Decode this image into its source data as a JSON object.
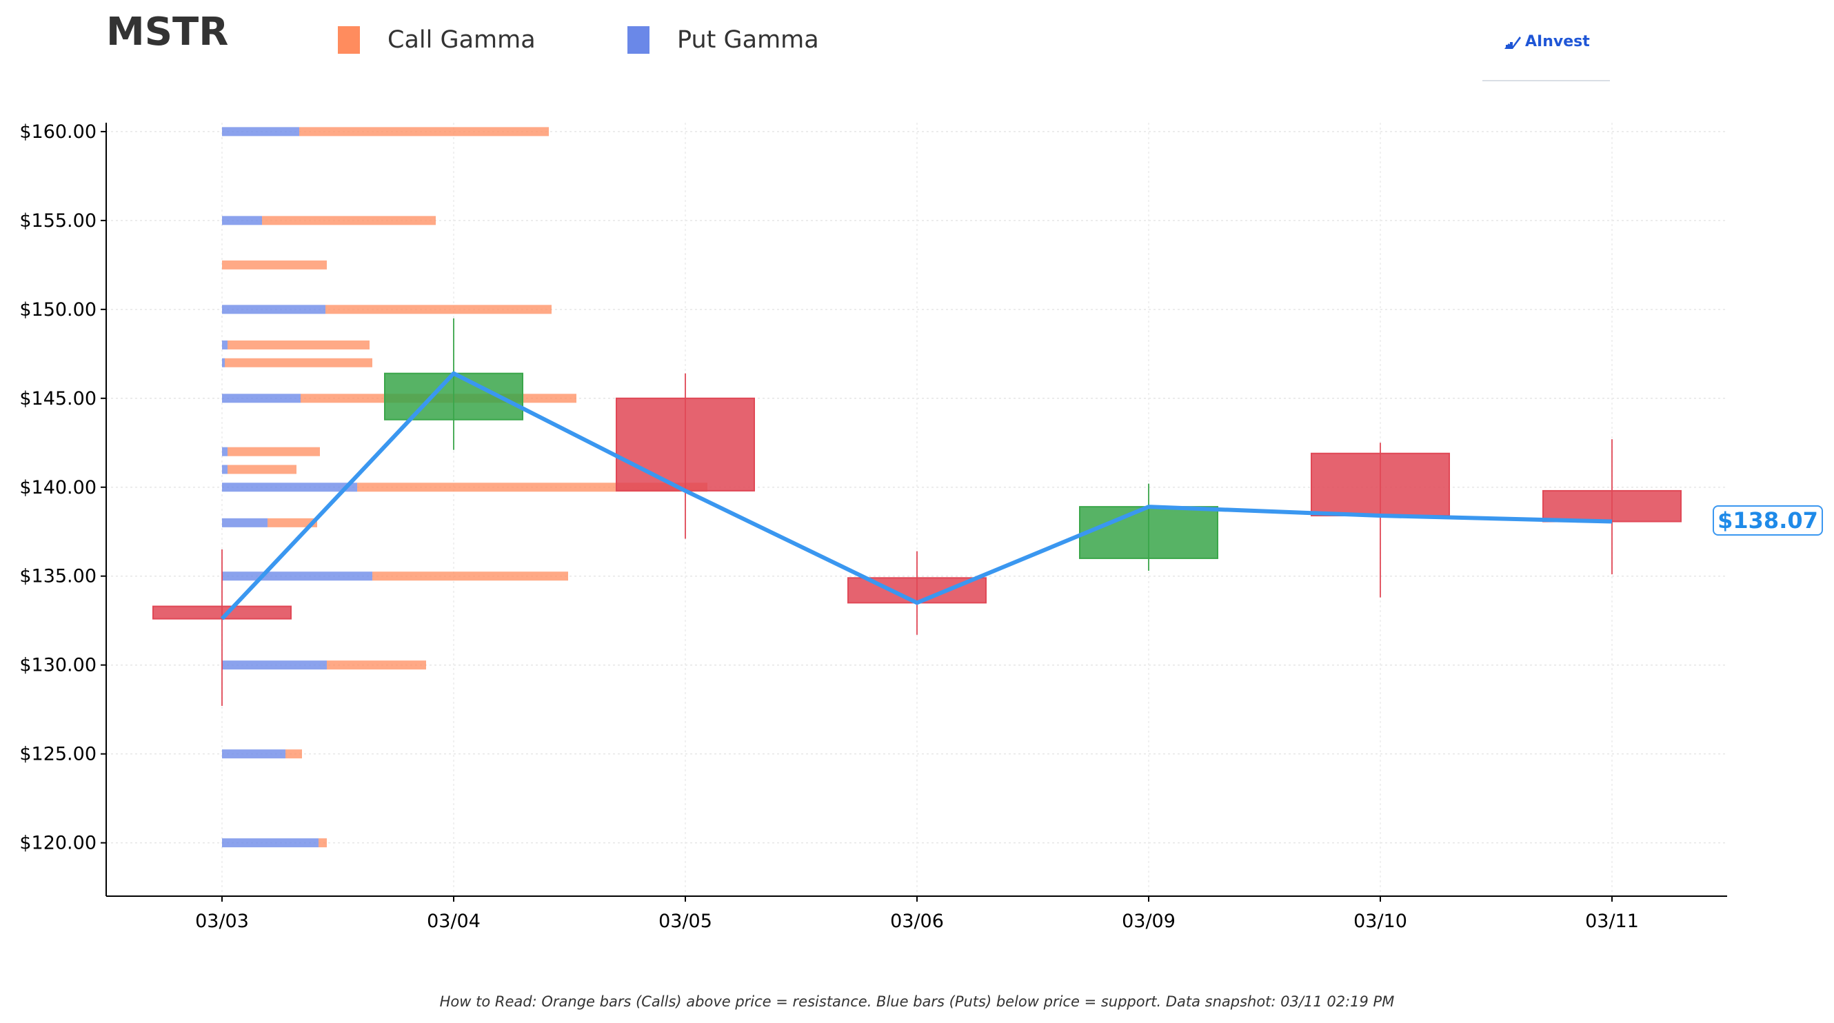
{
  "header": {
    "ticker": "MSTR"
  },
  "legend": {
    "calls": {
      "label": "Call Gamma",
      "color": "#ff8c5e"
    },
    "puts": {
      "label": "Put Gamma",
      "color": "#6a88e8"
    }
  },
  "brand": {
    "name": "AInvest",
    "icon": "ainvest-logo-icon"
  },
  "price_tag": "$138.07",
  "footnote": "How to Read: Orange bars (Calls) above price = resistance. Blue bars (Puts) below price = support. Data snapshot: 03/11 02:19 PM",
  "colors": {
    "up": "#3aa64a",
    "down": "#e04856",
    "price_line": "#3a97f0",
    "axis": "#000000"
  },
  "chart_data": {
    "type": "candlestick",
    "categories": [
      "03/03",
      "03/04",
      "03/05",
      "03/06",
      "03/09",
      "03/10",
      "03/11"
    ],
    "ylim": [
      117,
      160.5
    ],
    "yticks": [
      120,
      125,
      130,
      135,
      140,
      145,
      150,
      155,
      160
    ],
    "ytick_labels": [
      "$120.00",
      "$125.00",
      "$130.00",
      "$135.00",
      "$140.00",
      "$145.00",
      "$150.00",
      "$155.00",
      "$160.00"
    ],
    "candles": [
      {
        "date": "03/03",
        "open": 133.3,
        "high": 136.5,
        "low": 127.7,
        "close": 132.6
      },
      {
        "date": "03/04",
        "open": 143.8,
        "high": 149.5,
        "low": 142.1,
        "close": 146.4
      },
      {
        "date": "03/05",
        "open": 145.0,
        "high": 146.4,
        "low": 137.1,
        "close": 139.8
      },
      {
        "date": "03/06",
        "open": 134.9,
        "high": 136.4,
        "low": 131.7,
        "close": 133.5
      },
      {
        "date": "03/09",
        "open": 136.0,
        "high": 140.2,
        "low": 135.3,
        "close": 138.9
      },
      {
        "date": "03/10",
        "open": 141.9,
        "high": 142.5,
        "low": 133.8,
        "close": 138.4
      },
      {
        "date": "03/11",
        "open": 139.8,
        "high": 142.7,
        "low": 135.1,
        "close": 138.07
      }
    ],
    "price_line": [
      132.6,
      146.4,
      139.8,
      133.5,
      138.9,
      138.4,
      138.07
    ],
    "gamma_bars": [
      {
        "strike": 160,
        "put": 0.56,
        "call": 1.81
      },
      {
        "strike": 155,
        "put": 0.29,
        "call": 1.26
      },
      {
        "strike": 152.5,
        "put": 0.0,
        "call": 0.76
      },
      {
        "strike": 150,
        "put": 0.75,
        "call": 1.64
      },
      {
        "strike": 148,
        "put": 0.04,
        "call": 1.03
      },
      {
        "strike": 147,
        "put": 0.02,
        "call": 1.07
      },
      {
        "strike": 145,
        "put": 0.57,
        "call": 2.0
      },
      {
        "strike": 142,
        "put": 0.04,
        "call": 0.67
      },
      {
        "strike": 141,
        "put": 0.04,
        "call": 0.5
      },
      {
        "strike": 140,
        "put": 0.98,
        "call": 2.54
      },
      {
        "strike": 138,
        "put": 0.33,
        "call": 0.36
      },
      {
        "strike": 135,
        "put": 1.09,
        "call": 1.42
      },
      {
        "strike": 130,
        "put": 0.76,
        "call": 0.72
      },
      {
        "strike": 125,
        "put": 0.46,
        "call": 0.12
      },
      {
        "strike": 120,
        "put": 0.7,
        "call": 0.06
      }
    ]
  }
}
